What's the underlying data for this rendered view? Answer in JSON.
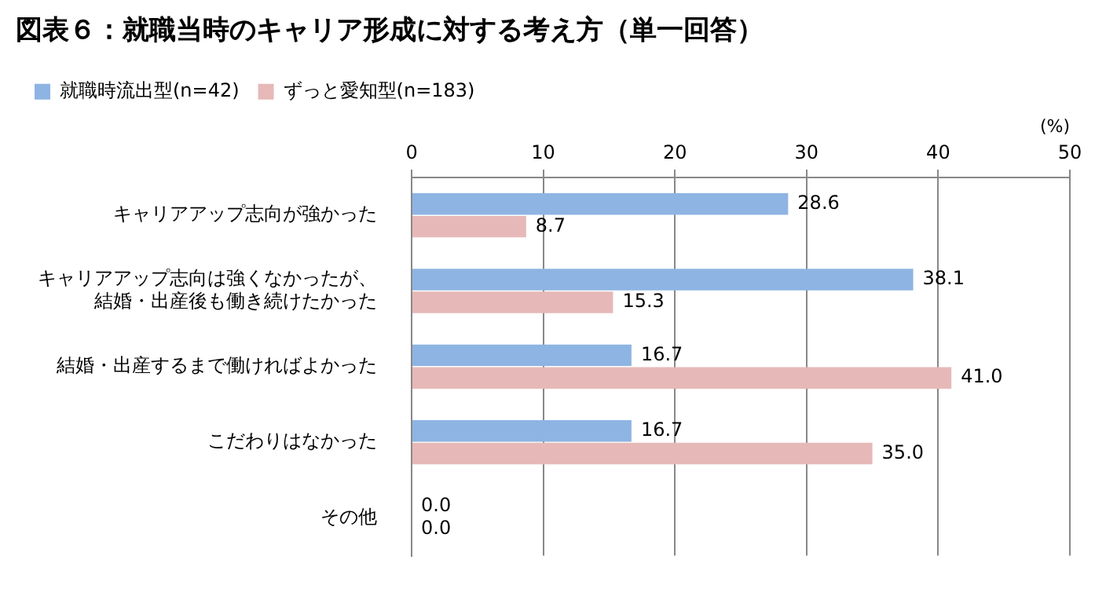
{
  "chart_data": {
    "type": "bar",
    "orientation": "horizontal",
    "title": "図表６：就職当時のキャリア形成に対する考え方（単一回答）",
    "xlabel": "(%)",
    "categories": [
      "キャリアアップ志向が強かった",
      "キャリアアップ志向は強くなかったが、結婚・出産後も働き続けたかった",
      "結婚・出産するまで働ければよかった",
      "こだわりはなかった",
      "その他"
    ],
    "series": [
      {
        "name": "就職時流出型(n=42)",
        "color": "#8eb4e3",
        "values": [
          28.6,
          38.1,
          16.7,
          16.7,
          0
        ],
        "value_labels": [
          "28.6",
          "38.1",
          "16.7",
          "16.7",
          "0.0"
        ]
      },
      {
        "name": "ずっと愛知型(n=183)",
        "color": "#e6b9b8",
        "values": [
          8.7,
          15.3,
          41.0,
          35.0,
          0
        ],
        "value_labels": [
          "8.7",
          "15.3",
          "41.0",
          "35.0",
          "0.0"
        ]
      }
    ],
    "xlim": [
      0,
      50
    ],
    "xticks": [
      0,
      10,
      20,
      30,
      40,
      50
    ],
    "grid": "x",
    "legend": "top left"
  }
}
